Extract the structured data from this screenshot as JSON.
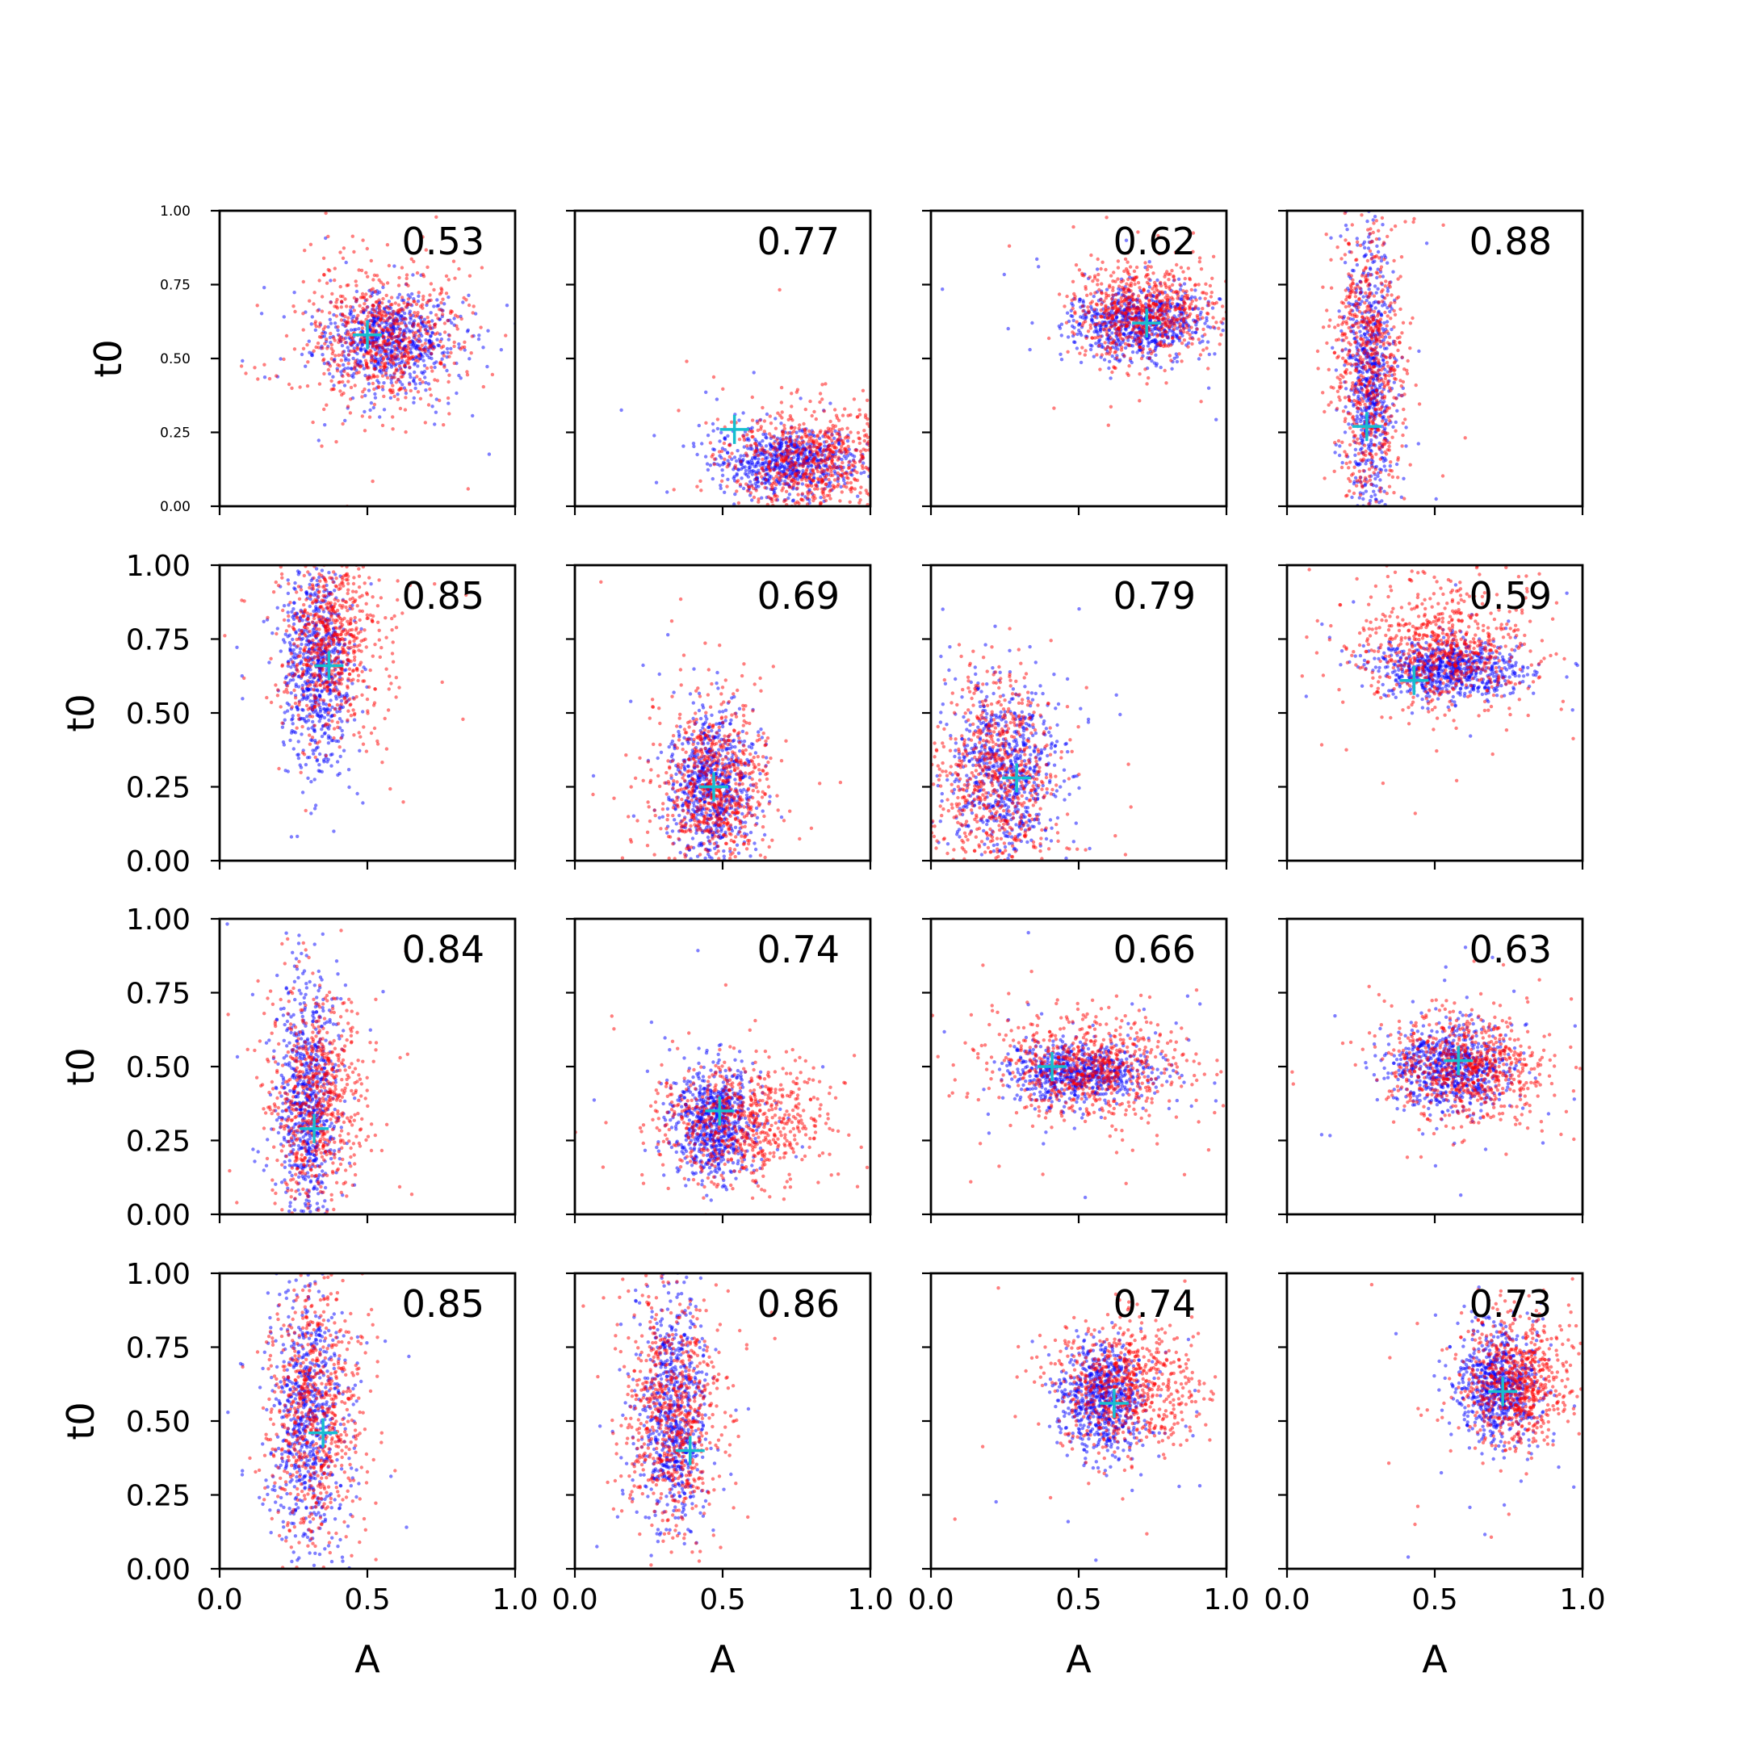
{
  "chart_data": {
    "type": "scatter",
    "grid": false,
    "xlabel": "A",
    "ylabel": "t0",
    "xlim": [
      0,
      1
    ],
    "ylim": [
      0,
      1
    ],
    "x_ticks": [
      "0.0",
      "0.5",
      "1.0"
    ],
    "y_ticks": [
      "0.00",
      "0.25",
      "0.50",
      "0.75",
      "1.00"
    ],
    "colors": {
      "series_blue": "#0000ff",
      "series_red": "#ff0000",
      "marker": "#17becf"
    },
    "panels": [
      {
        "score": "0.53",
        "marker": [
          0.5,
          0.58
        ],
        "blue": {
          "center": [
            0.56,
            0.56
          ],
          "spread": [
            0.12,
            0.08
          ]
        },
        "red": {
          "center": [
            0.56,
            0.57
          ],
          "spread": [
            0.13,
            0.12
          ]
        }
      },
      {
        "score": "0.77",
        "marker": [
          0.54,
          0.26
        ],
        "blue": {
          "center": [
            0.72,
            0.15
          ],
          "spread": [
            0.12,
            0.06
          ]
        },
        "red": {
          "center": [
            0.8,
            0.15
          ],
          "spread": [
            0.14,
            0.09
          ]
        }
      },
      {
        "score": "0.62",
        "marker": [
          0.73,
          0.62
        ],
        "blue": {
          "center": [
            0.7,
            0.62
          ],
          "spread": [
            0.11,
            0.06
          ]
        },
        "red": {
          "center": [
            0.72,
            0.66
          ],
          "spread": [
            0.12,
            0.08
          ]
        }
      },
      {
        "score": "0.88",
        "marker": [
          0.27,
          0.27
        ],
        "blue": {
          "center": [
            0.28,
            0.42
          ],
          "spread": [
            0.04,
            0.24
          ]
        },
        "red": {
          "center": [
            0.28,
            0.48
          ],
          "spread": [
            0.06,
            0.24
          ]
        }
      },
      {
        "score": "0.85",
        "marker": [
          0.37,
          0.66
        ],
        "blue": {
          "center": [
            0.33,
            0.66
          ],
          "spread": [
            0.06,
            0.17
          ]
        },
        "red": {
          "center": [
            0.38,
            0.74
          ],
          "spread": [
            0.08,
            0.16
          ]
        }
      },
      {
        "score": "0.69",
        "marker": [
          0.47,
          0.25
        ],
        "blue": {
          "center": [
            0.46,
            0.25
          ],
          "spread": [
            0.07,
            0.12
          ]
        },
        "red": {
          "center": [
            0.47,
            0.25
          ],
          "spread": [
            0.1,
            0.14
          ]
        }
      },
      {
        "score": "0.79",
        "marker": [
          0.29,
          0.28
        ],
        "blue": {
          "center": [
            0.25,
            0.3
          ],
          "spread": [
            0.09,
            0.15
          ]
        },
        "red": {
          "center": [
            0.22,
            0.28
          ],
          "spread": [
            0.1,
            0.18
          ]
        }
      },
      {
        "score": "0.59",
        "marker": [
          0.43,
          0.61
        ],
        "blue": {
          "center": [
            0.55,
            0.65
          ],
          "spread": [
            0.12,
            0.05
          ]
        },
        "red": {
          "center": [
            0.52,
            0.72
          ],
          "spread": [
            0.15,
            0.1
          ]
        }
      },
      {
        "score": "0.84",
        "marker": [
          0.32,
          0.29
        ],
        "blue": {
          "center": [
            0.3,
            0.38
          ],
          "spread": [
            0.05,
            0.2
          ]
        },
        "red": {
          "center": [
            0.33,
            0.38
          ],
          "spread": [
            0.08,
            0.2
          ]
        }
      },
      {
        "score": "0.74",
        "marker": [
          0.49,
          0.35
        ],
        "blue": {
          "center": [
            0.47,
            0.31
          ],
          "spread": [
            0.07,
            0.09
          ]
        },
        "red": {
          "center": [
            0.56,
            0.31
          ],
          "spread": [
            0.14,
            0.1
          ]
        }
      },
      {
        "score": "0.66",
        "marker": [
          0.41,
          0.5
        ],
        "blue": {
          "center": [
            0.5,
            0.48
          ],
          "spread": [
            0.12,
            0.05
          ]
        },
        "red": {
          "center": [
            0.53,
            0.49
          ],
          "spread": [
            0.16,
            0.09
          ]
        }
      },
      {
        "score": "0.63",
        "marker": [
          0.58,
          0.52
        ],
        "blue": {
          "center": [
            0.56,
            0.5
          ],
          "spread": [
            0.1,
            0.07
          ]
        },
        "red": {
          "center": [
            0.61,
            0.5
          ],
          "spread": [
            0.14,
            0.09
          ]
        }
      },
      {
        "score": "0.85",
        "marker": [
          0.35,
          0.46
        ],
        "blue": {
          "center": [
            0.3,
            0.5
          ],
          "spread": [
            0.06,
            0.22
          ]
        },
        "red": {
          "center": [
            0.32,
            0.52
          ],
          "spread": [
            0.08,
            0.22
          ]
        }
      },
      {
        "score": "0.86",
        "marker": [
          0.39,
          0.4
        ],
        "blue": {
          "center": [
            0.33,
            0.52
          ],
          "spread": [
            0.06,
            0.2
          ]
        },
        "red": {
          "center": [
            0.33,
            0.52
          ],
          "spread": [
            0.08,
            0.2
          ]
        }
      },
      {
        "score": "0.74",
        "marker": [
          0.62,
          0.56
        ],
        "blue": {
          "center": [
            0.58,
            0.58
          ],
          "spread": [
            0.07,
            0.09
          ]
        },
        "red": {
          "center": [
            0.66,
            0.62
          ],
          "spread": [
            0.12,
            0.11
          ]
        }
      },
      {
        "score": "0.73",
        "marker": [
          0.73,
          0.6
        ],
        "blue": {
          "center": [
            0.71,
            0.62
          ],
          "spread": [
            0.07,
            0.09
          ]
        },
        "red": {
          "center": [
            0.78,
            0.63
          ],
          "spread": [
            0.09,
            0.11
          ]
        }
      }
    ]
  }
}
